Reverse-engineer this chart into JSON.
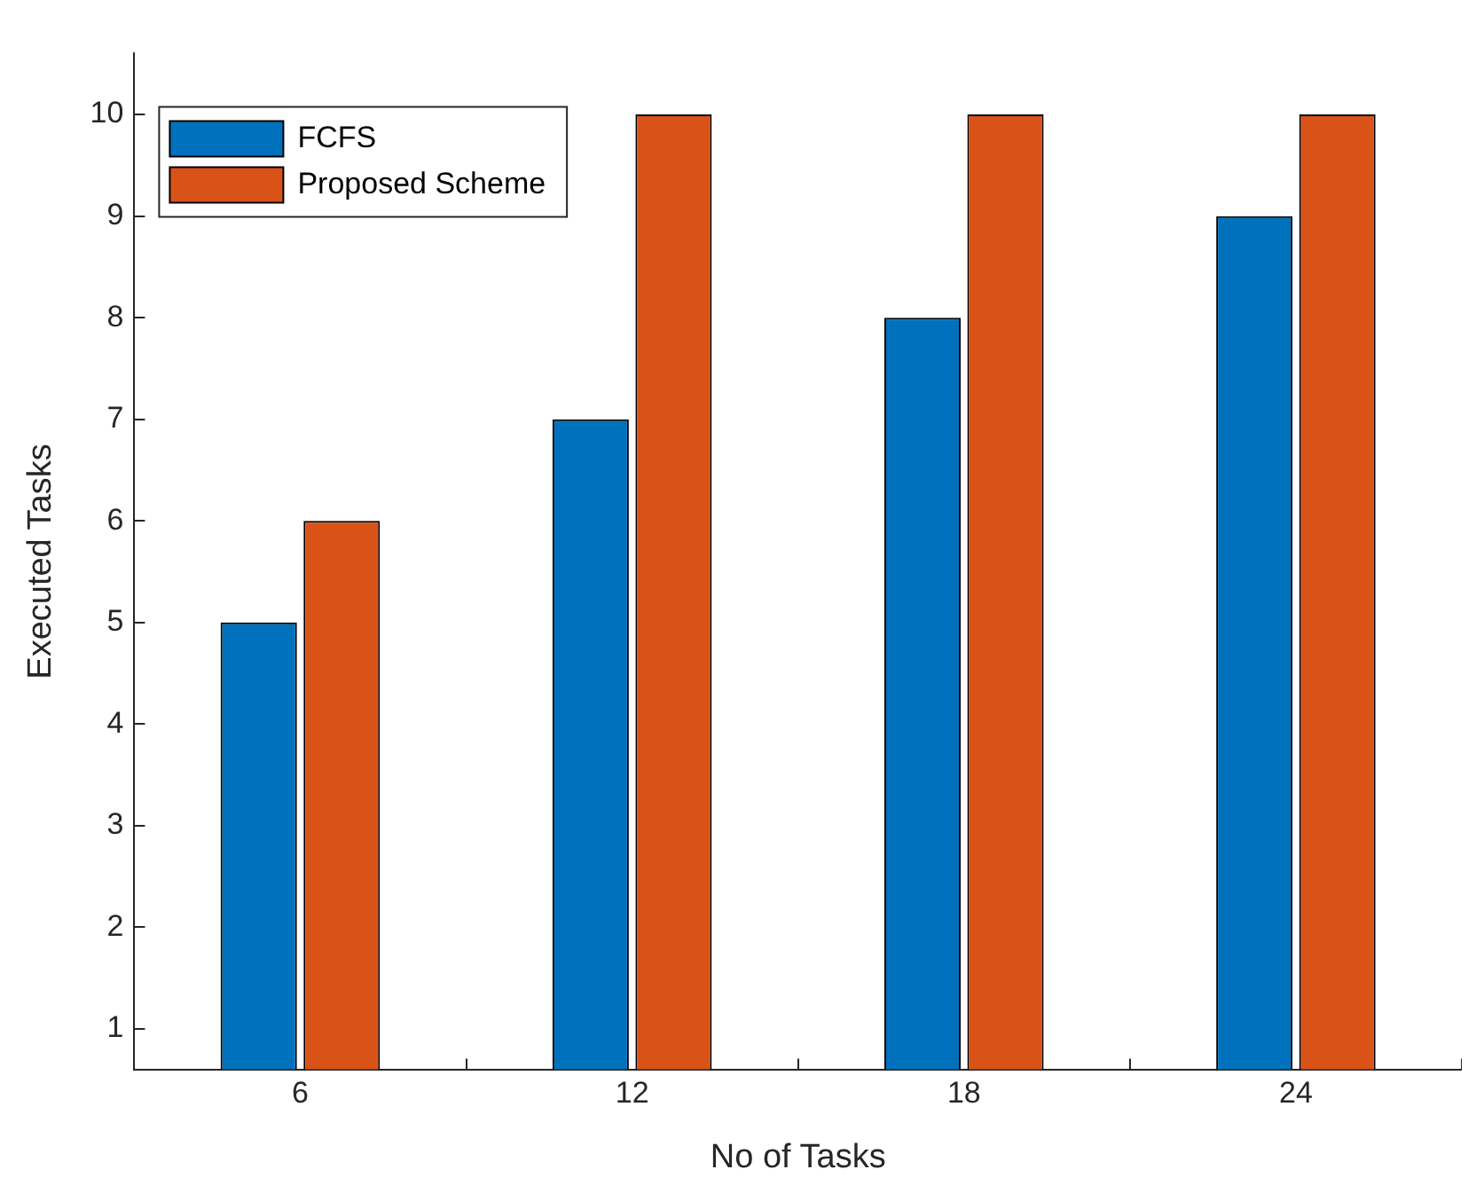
{
  "chart_data": {
    "type": "bar",
    "xlabel": "No of Tasks",
    "ylabel": "Executed Tasks",
    "categories": [
      "6",
      "12",
      "18",
      "24"
    ],
    "series": [
      {
        "name": "FCFS",
        "color": "#0072bd",
        "values": [
          5,
          7,
          8,
          9
        ]
      },
      {
        "name": "Proposed Scheme",
        "color": "#d95319",
        "values": [
          6,
          10,
          10,
          10
        ]
      }
    ],
    "ylim": [
      0.6,
      10.6
    ],
    "yticks": [
      1,
      2,
      3,
      4,
      5,
      6,
      7,
      8,
      9,
      10
    ],
    "grid": false,
    "legend": "top left"
  }
}
